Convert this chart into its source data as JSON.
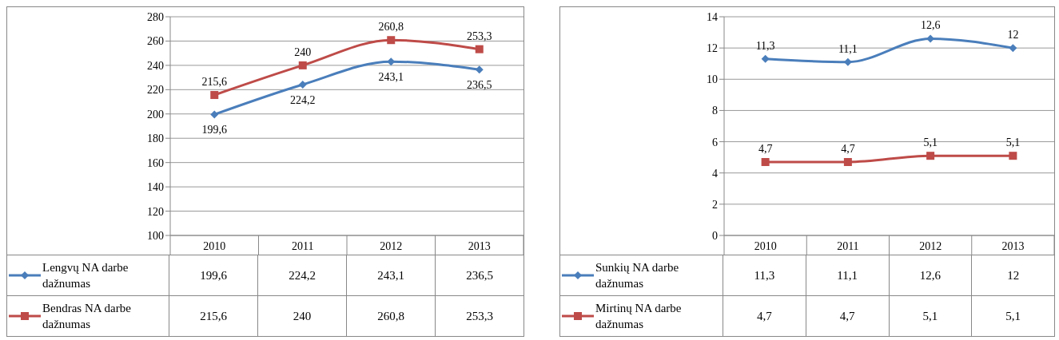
{
  "chart_data": [
    {
      "type": "line",
      "categories": [
        "2010",
        "2011",
        "2012",
        "2013"
      ],
      "ylim": [
        100,
        280
      ],
      "yticks": [
        100,
        120,
        140,
        160,
        180,
        200,
        220,
        240,
        260,
        280
      ],
      "grid": "y",
      "legend": "bottom",
      "data_labels": true,
      "series": [
        {
          "name": "Lengvų NA darbe dažnumas",
          "color": "#4a7ebb",
          "marker": "diamond",
          "values": [
            199.6,
            224.2,
            243.1,
            236.5
          ],
          "value_labels": [
            "199,6",
            "224,2",
            "243,1",
            "236,5"
          ]
        },
        {
          "name": "Bendras NA darbe dažnumas",
          "color": "#be4b48",
          "marker": "square",
          "values": [
            215.6,
            240,
            260.8,
            253.3
          ],
          "value_labels": [
            "215,6",
            "240",
            "260,8",
            "253,3"
          ]
        }
      ]
    },
    {
      "type": "line",
      "categories": [
        "2010",
        "2011",
        "2012",
        "2013"
      ],
      "ylim": [
        0,
        14
      ],
      "yticks": [
        0,
        2,
        4,
        6,
        8,
        10,
        12,
        14
      ],
      "grid": "y",
      "legend": "bottom",
      "data_labels": true,
      "series": [
        {
          "name": "Sunkių NA darbe dažnumas",
          "color": "#4a7ebb",
          "marker": "diamond",
          "values": [
            11.3,
            11.1,
            12.6,
            12
          ],
          "value_labels": [
            "11,3",
            "11,1",
            "12,6",
            "12"
          ]
        },
        {
          "name": "Mirtinų NA darbe dažnumas",
          "color": "#be4b48",
          "marker": "square",
          "values": [
            4.7,
            4.7,
            5.1,
            5.1
          ],
          "value_labels": [
            "4,7",
            "4,7",
            "5,1",
            "5,1"
          ]
        }
      ]
    }
  ]
}
